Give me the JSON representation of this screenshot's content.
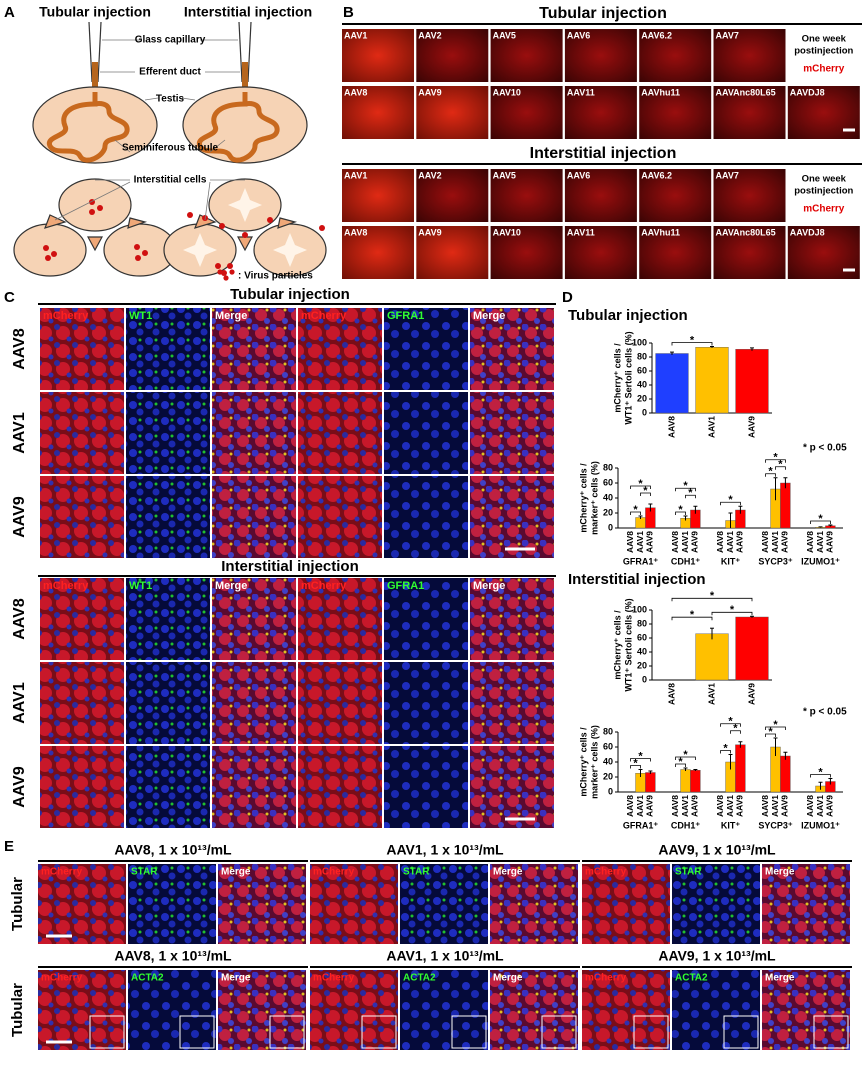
{
  "panel_a": {
    "letter": "A",
    "titles": [
      "Tubular injection",
      "Interstitial injection"
    ],
    "labels": [
      "Glass capillary",
      "Efferent duct",
      "Testis",
      "Seminiferous tubule",
      "Interstitial cells",
      ": Virus particles"
    ]
  },
  "panel_b": {
    "letter": "B",
    "sections": [
      {
        "title": "Tubular injection",
        "rows": [
          [
            "AAV1",
            "AAV2",
            "AAV5",
            "AAV6",
            "AAV6.2",
            "AAV7"
          ],
          [
            "AAV8",
            "AAV9",
            "AAV10",
            "AAV11",
            "AAVhu11",
            "AAVAnc80L65",
            "AAVDJ8"
          ]
        ],
        "note": [
          "One week",
          "postinjection"
        ],
        "marker": "mCherry"
      },
      {
        "title": "Interstitial injection",
        "rows": [
          [
            "AAV1",
            "AAV2",
            "AAV5",
            "AAV6",
            "AAV6.2",
            "AAV7"
          ],
          [
            "AAV8",
            "AAV9",
            "AAV10",
            "AAV11",
            "AAVhu11",
            "AAVAnc80L65",
            "AAVDJ8"
          ]
        ],
        "note": [
          "One week",
          "postinjection"
        ],
        "marker": "mCherry"
      }
    ]
  },
  "panel_c": {
    "letter": "C",
    "sections": [
      {
        "title": "Tubular injection",
        "columns": [
          "mCherry",
          "WT1",
          "Merge",
          "mCherry",
          "GFRA1",
          "Merge"
        ],
        "rows": [
          "AAV8",
          "AAV1",
          "AAV9"
        ]
      },
      {
        "title": "Interstitial injection",
        "columns": [
          "mCherry",
          "WT1",
          "Merge",
          "mCherry",
          "GFRA1",
          "Merge"
        ],
        "rows": [
          "AAV8",
          "AAV1",
          "AAV9"
        ]
      }
    ]
  },
  "panel_d": {
    "letter": "D",
    "sections": [
      "Tubular injection",
      "Interstitial injection"
    ],
    "charts": [
      {
        "type": "bar",
        "ylabel": [
          "mCherry⁺ cells /",
          "WT1⁺ Sertoli cells (%)"
        ],
        "categories": [
          "AAV8",
          "AAV1",
          "AAV9"
        ],
        "values": [
          85,
          94,
          91
        ],
        "errors": [
          2,
          1,
          2
        ],
        "colors": [
          "#1f3fff",
          "#ffc000",
          "#ff0000"
        ],
        "ylim": [
          0,
          100
        ],
        "yticks": [
          0,
          20,
          40,
          60,
          80,
          100
        ],
        "annotations": [
          "*"
        ]
      },
      {
        "type": "grouped_bar",
        "ylabel": [
          "mCherry⁺ cells /",
          "marker⁺ cells (%)"
        ],
        "categories": [
          "GFRA1⁺",
          "CDH1⁺",
          "KIT⁺",
          "SYCP3⁺",
          "IZUMO1⁺"
        ],
        "series": [
          {
            "name": "AAV8",
            "color": "#1f3fff",
            "values": [
              0,
              0,
              0,
              0,
              0
            ],
            "errors": [
              0,
              0,
              0,
              0,
              0
            ]
          },
          {
            "name": "AAV1",
            "color": "#ffc000",
            "values": [
              14,
              13,
              10,
              52,
              1
            ],
            "errors": [
              2,
              3,
              10,
              15,
              0.5
            ]
          },
          {
            "name": "AAV9",
            "color": "#ff0000",
            "values": [
              27,
              24,
              24,
              60,
              3
            ],
            "errors": [
              5,
              5,
              5,
              7,
              1
            ]
          }
        ],
        "ylim": [
          0,
          80
        ],
        "yticks": [
          0,
          20,
          40,
          60,
          80
        ],
        "annotations": [
          "*",
          "*",
          "*",
          "*",
          "*",
          "*",
          "*",
          "*",
          "*",
          "*",
          "*"
        ],
        "note": "* p < 0.05"
      },
      {
        "type": "bar",
        "ylabel": [
          "mCherry⁺ cells /",
          "WT1⁺ Sertoli cells (%)"
        ],
        "categories": [
          "AAV8",
          "AAV1",
          "AAV9"
        ],
        "values": [
          0,
          66,
          90
        ],
        "errors": [
          0,
          8,
          1
        ],
        "colors": [
          "#1f3fff",
          "#ffc000",
          "#ff0000"
        ],
        "ylim": [
          0,
          100
        ],
        "yticks": [
          0,
          20,
          40,
          60,
          80,
          100
        ],
        "annotations": [
          "*",
          "*",
          "*"
        ]
      },
      {
        "type": "grouped_bar",
        "ylabel": [
          "mCherry⁺ cells /",
          "marker⁺ cells (%)"
        ],
        "categories": [
          "GFRA1⁺",
          "CDH1⁺",
          "KIT⁺",
          "SYCP3⁺",
          "IZUMO1⁺"
        ],
        "series": [
          {
            "name": "AAV8",
            "color": "#1f3fff",
            "values": [
              0,
              0,
              0,
              0,
              0
            ],
            "errors": [
              0,
              0,
              0,
              0,
              0
            ]
          },
          {
            "name": "AAV1",
            "color": "#ffc000",
            "values": [
              25,
              30,
              40,
              60,
              8
            ],
            "errors": [
              5,
              2,
              10,
              12,
              5
            ]
          },
          {
            "name": "AAV9",
            "color": "#ff0000",
            "values": [
              26,
              29,
              63,
              48,
              14
            ],
            "errors": [
              2,
              1,
              4,
              5,
              4
            ]
          }
        ],
        "ylim": [
          0,
          80
        ],
        "yticks": [
          0,
          20,
          40,
          60,
          80
        ],
        "annotations": [
          "*",
          "*",
          "*",
          "*",
          "*",
          "*",
          "*",
          "*",
          "*",
          "*"
        ],
        "note": "* p < 0.05"
      }
    ]
  },
  "panel_e": {
    "letter": "E",
    "rows": [
      {
        "row_label": "Tubular",
        "groups": [
          {
            "title": "AAV8, 1 x 10¹³/mL",
            "columns": [
              "mCherry",
              "STAR",
              "Merge"
            ]
          },
          {
            "title": "AAV1, 1 x 10¹³/mL",
            "columns": [
              "mCherry",
              "STAR",
              "Merge"
            ]
          },
          {
            "title": "AAV9, 1 x 10¹³/mL",
            "columns": [
              "mCherry",
              "STAR",
              "Merge"
            ]
          }
        ]
      },
      {
        "row_label": "Tubular",
        "groups": [
          {
            "title": "AAV8, 1 x 10¹³/mL",
            "columns": [
              "mCherry",
              "ACTA2",
              "Merge"
            ]
          },
          {
            "title": "AAV1, 1 x 10¹³/mL",
            "columns": [
              "mCherry",
              "ACTA2",
              "Merge"
            ]
          },
          {
            "title": "AAV9, 1 x 10¹³/mL",
            "columns": [
              "mCherry",
              "ACTA2",
              "Merge"
            ]
          }
        ]
      }
    ]
  }
}
